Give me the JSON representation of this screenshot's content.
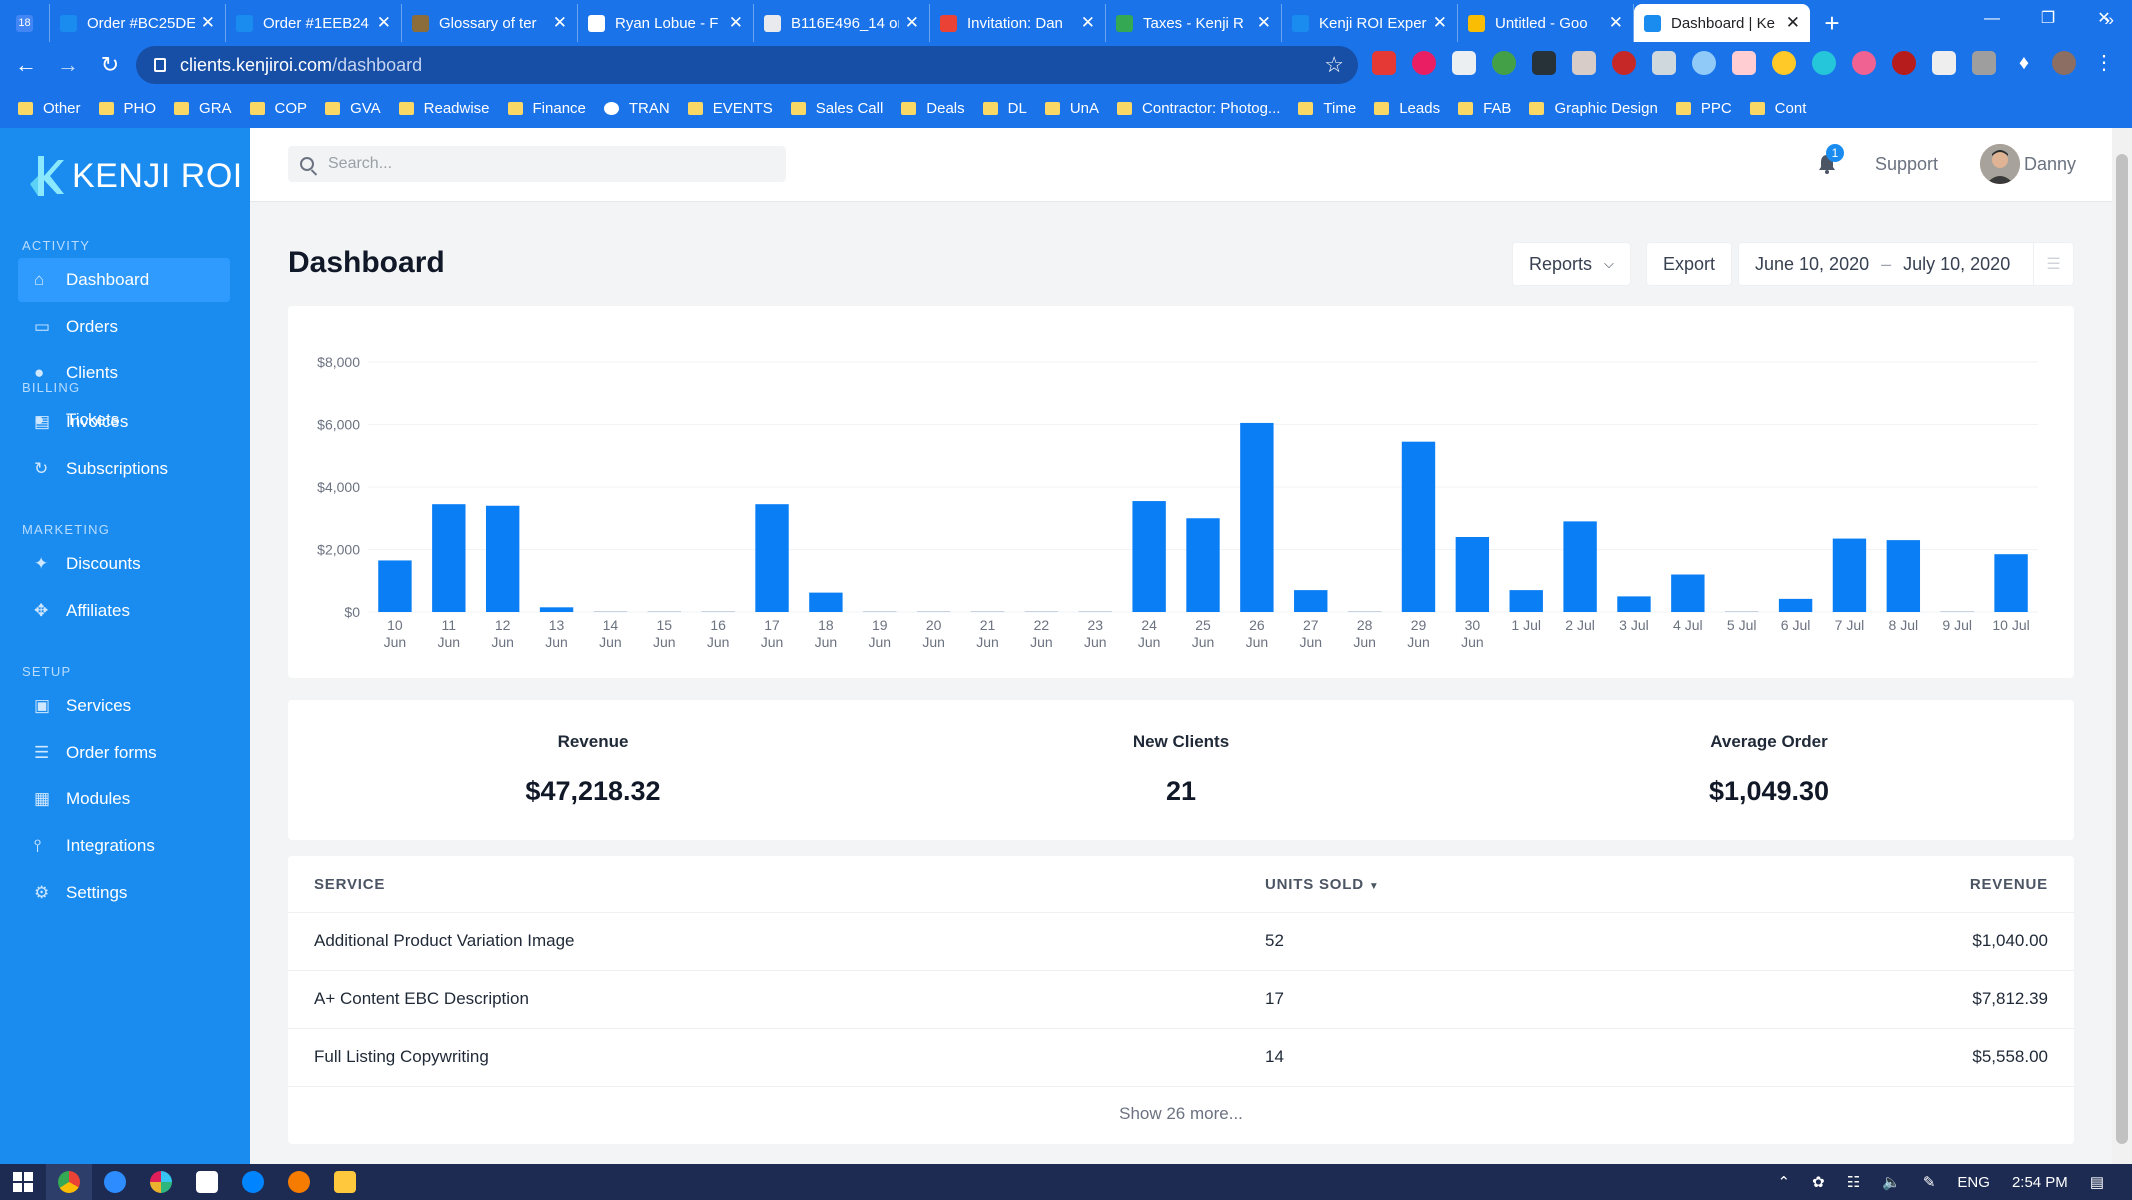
{
  "browser": {
    "tabs": [
      {
        "label": "18",
        "color": "#4285f4"
      },
      {
        "label": "Order #BC25DE",
        "color": "#1a8cf0"
      },
      {
        "label": "Order #1EEB24",
        "color": "#1a8cf0"
      },
      {
        "label": "Glossary of ter",
        "color": "#8a6d3b"
      },
      {
        "label": "Ryan Lobue - F",
        "color": "#ffffff"
      },
      {
        "label": "B116E496_14 or",
        "color": "#e8eaed"
      },
      {
        "label": "Invitation: Dan",
        "color": "#ea4335"
      },
      {
        "label": "Taxes - Kenji R",
        "color": "#34a853"
      },
      {
        "label": "Kenji ROI Exper",
        "color": "#1a8cf0"
      },
      {
        "label": "Untitled - Goo",
        "color": "#fbbc04"
      },
      {
        "label": "Dashboard | Ke",
        "color": "#1a8cf0"
      }
    ],
    "new_tab": "+",
    "url_domain": "clients.kenjiroi.com",
    "url_path": "/dashboard",
    "bookmarks": [
      "Other",
      "PHO",
      "GRA",
      "COP",
      "GVA",
      "Readwise",
      "Finance",
      "TRAN",
      "EVENTS",
      "Sales Call",
      "Deals",
      "DL",
      "UnA",
      "Contractor: Photog...",
      "Time",
      "Leads",
      "FAB",
      "Graphic Design",
      "PPC",
      "Cont"
    ],
    "bookmarks_more": "»"
  },
  "sidebar": {
    "logo_text": "KENJI ROI",
    "sections": [
      {
        "title": "ACTIVITY",
        "items": [
          {
            "label": "Dashboard",
            "icon": "home-icon",
            "active": true
          },
          {
            "label": "Orders",
            "icon": "inbox-icon"
          },
          {
            "label": "Clients",
            "icon": "user-icon"
          },
          {
            "label": "Tickets",
            "icon": "chat-icon"
          }
        ]
      },
      {
        "title": "BILLING",
        "items": [
          {
            "label": "Invoices",
            "icon": "file-icon"
          },
          {
            "label": "Subscriptions",
            "icon": "refresh-icon"
          }
        ]
      },
      {
        "title": "MARKETING",
        "items": [
          {
            "label": "Discounts",
            "icon": "tag-icon"
          },
          {
            "label": "Affiliates",
            "icon": "handshake-icon"
          }
        ]
      },
      {
        "title": "SETUP",
        "items": [
          {
            "label": "Services",
            "icon": "briefcase-icon"
          },
          {
            "label": "Order forms",
            "icon": "list-icon"
          },
          {
            "label": "Modules",
            "icon": "grid-icon"
          },
          {
            "label": "Integrations",
            "icon": "plug-icon"
          },
          {
            "label": "Settings",
            "icon": "gear-icon"
          }
        ]
      }
    ]
  },
  "header": {
    "search_placeholder": "Search...",
    "notification_count": "1",
    "support_label": "Support",
    "user_name": "Danny"
  },
  "page": {
    "title": "Dashboard",
    "reports_label": "Reports",
    "export_label": "Export",
    "date_from": "June 10, 2020",
    "date_sep": "–",
    "date_to": "July 10, 2020"
  },
  "chart_data": {
    "type": "bar",
    "categories": [
      "10 Jun",
      "11 Jun",
      "12 Jun",
      "13 Jun",
      "14 Jun",
      "15 Jun",
      "16 Jun",
      "17 Jun",
      "18 Jun",
      "19 Jun",
      "20 Jun",
      "21 Jun",
      "22 Jun",
      "23 Jun",
      "24 Jun",
      "25 Jun",
      "26 Jun",
      "27 Jun",
      "28 Jun",
      "29 Jun",
      "30 Jun",
      "1 Jul",
      "2 Jul",
      "3 Jul",
      "4 Jul",
      "5 Jul",
      "6 Jul",
      "7 Jul",
      "8 Jul",
      "9 Jul",
      "10 Jul"
    ],
    "values": [
      1650,
      3450,
      3400,
      150,
      0,
      0,
      0,
      3450,
      620,
      0,
      0,
      0,
      0,
      0,
      3550,
      3000,
      6050,
      700,
      0,
      5450,
      2400,
      700,
      2900,
      500,
      1200,
      0,
      420,
      2350,
      2300,
      0,
      1850
    ],
    "ylim": [
      0,
      8000
    ],
    "yticks": [
      "$0",
      "$2,000",
      "$4,000",
      "$6,000",
      "$8,000"
    ],
    "color": "#0a7ff5",
    "grid": true
  },
  "stats": [
    {
      "label": "Revenue",
      "value": "$47,218.32"
    },
    {
      "label": "New Clients",
      "value": "21"
    },
    {
      "label": "Average Order",
      "value": "$1,049.30"
    }
  ],
  "table": {
    "headers": {
      "service": "SERVICE",
      "units": "UNITS SOLD",
      "revenue": "REVENUE"
    },
    "rows": [
      {
        "service": "Additional Product Variation Image",
        "units": "52",
        "revenue": "$1,040.00"
      },
      {
        "service": "A+ Content EBC Description",
        "units": "17",
        "revenue": "$7,812.39"
      },
      {
        "service": "Full Listing Copywriting",
        "units": "14",
        "revenue": "$5,558.00"
      }
    ],
    "show_more": "Show 26 more..."
  },
  "taskbar": {
    "lang": "ENG",
    "time": "2:54 PM"
  }
}
